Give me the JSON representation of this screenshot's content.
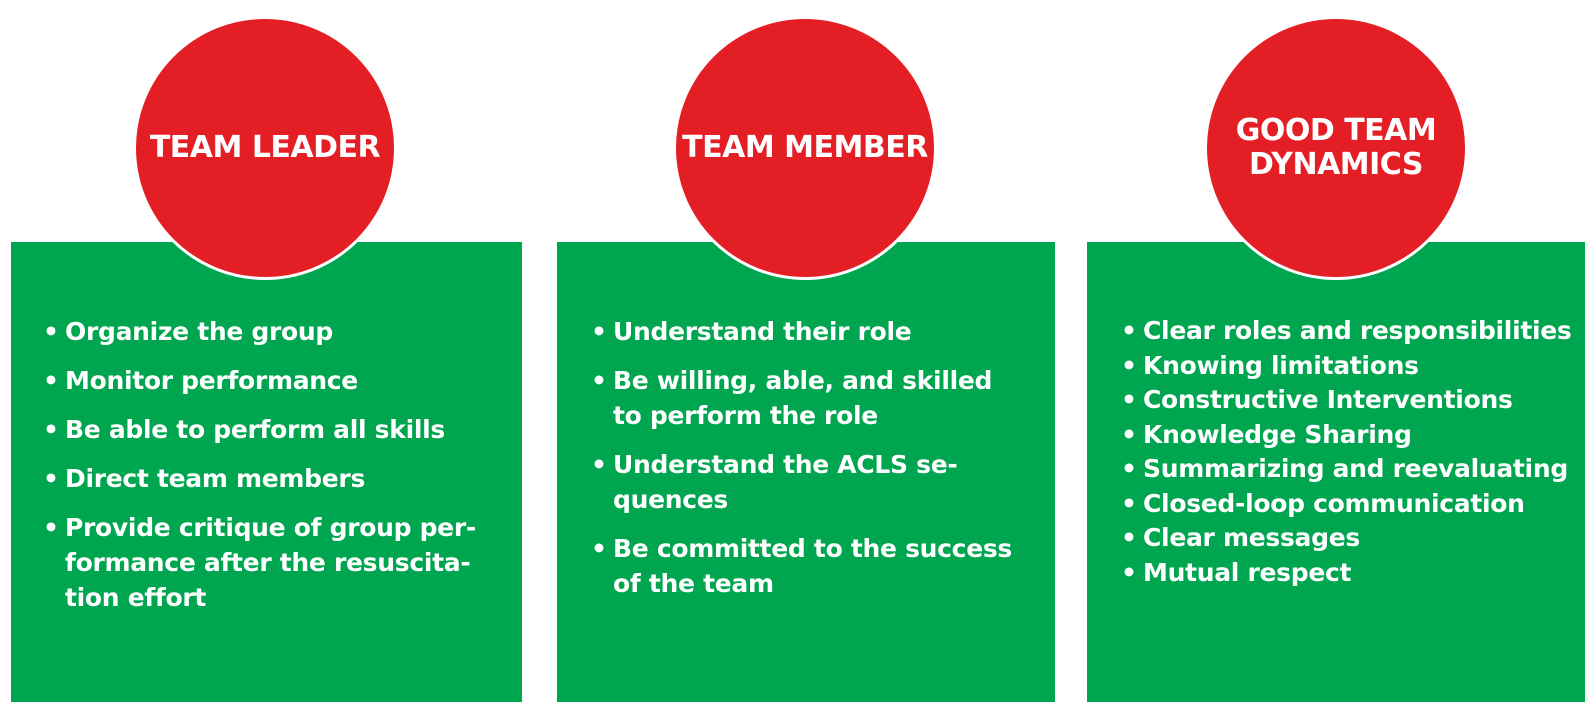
{
  "colors": {
    "circle": "#e31e24",
    "panel": "#00a64f",
    "text": "#ffffff"
  },
  "cards": [
    {
      "title": "TEAM LEADER",
      "items": [
        "Organize the group",
        "Monitor performance",
        "Be able to perform all skills",
        "Direct team members",
        "Provide critique of group per-formance after the resuscita-tion effort"
      ]
    },
    {
      "title": "TEAM MEMBER",
      "items": [
        "Understand their role",
        "Be willing, able, and skilled to perform the role",
        "Understand the ACLS se-quences",
        "Be committed to the success of the team"
      ]
    },
    {
      "title": "GOOD TEAM DYNAMICS",
      "items": [
        "Clear roles and responsibilities",
        "Knowing limitations",
        "Constructive Interventions",
        "Knowledge Sharing",
        "Summarizing and reevaluating",
        "Closed-loop communication",
        "Clear messages",
        "Mutual respect"
      ]
    }
  ]
}
